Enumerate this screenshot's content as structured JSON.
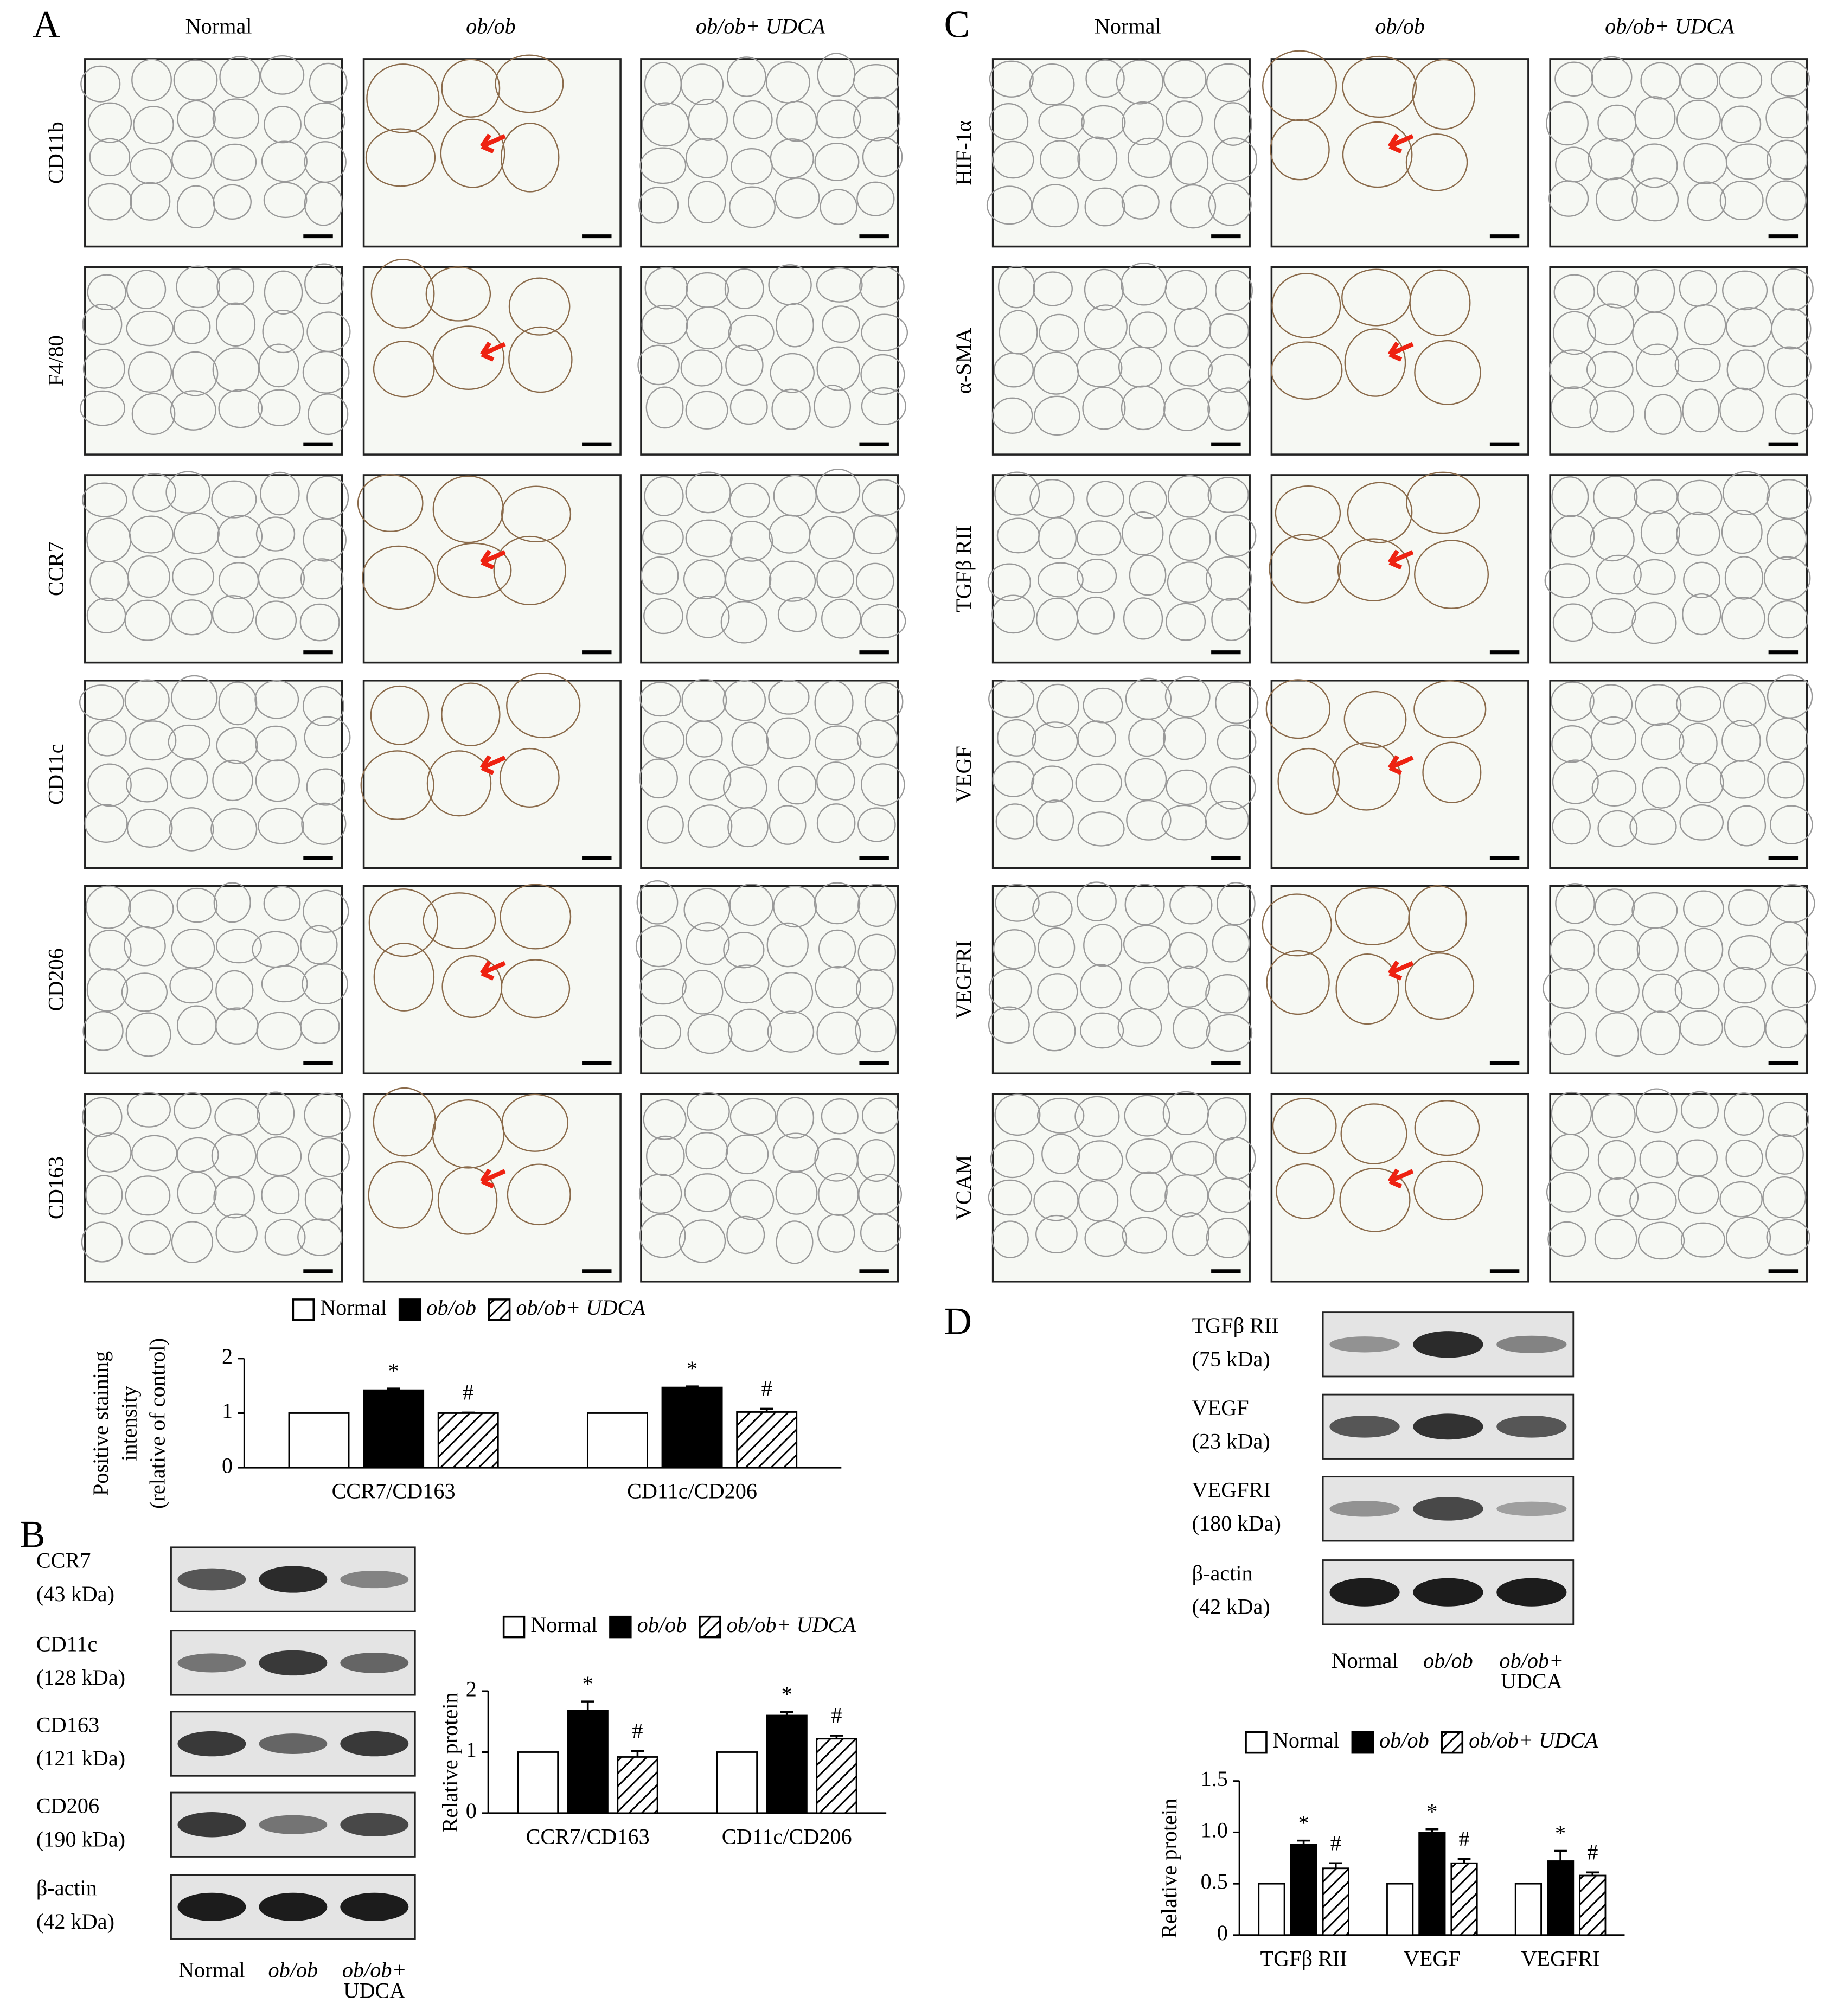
{
  "panel_labels": [
    "A",
    "B",
    "C",
    "D"
  ],
  "micrographs_A": {
    "columns": [
      "Normal",
      "ob/ob",
      "ob/ob+ UDCA"
    ],
    "rows": [
      "CD11b",
      "F4/80",
      "CCR7",
      "CD11c",
      "CD206",
      "CD163"
    ]
  },
  "micrographs_C": {
    "columns": [
      "Normal",
      "ob/ob",
      "ob/ob+ UDCA"
    ],
    "rows": [
      "HIF-1α",
      "α-SMA",
      "TGFβ RII",
      "VEGF",
      "VEGFRI",
      "VCAM"
    ]
  },
  "blot_B": {
    "bands": [
      {
        "label": "CCR7",
        "size": "(43 kDa)"
      },
      {
        "label": "CD11c",
        "size": "(128 kDa)"
      },
      {
        "label": "CD163",
        "size": "(121 kDa)"
      },
      {
        "label": "CD206",
        "size": "(190 kDa)"
      },
      {
        "label": "β-actin",
        "size": "(42 kDa)"
      }
    ],
    "lanes": [
      [
        "Normal"
      ],
      [
        "ob/ob"
      ],
      [
        "ob/ob+",
        "UDCA"
      ]
    ]
  },
  "blot_D": {
    "bands": [
      {
        "label": "TGFβ RII",
        "size": "(75 kDa)"
      },
      {
        "label": "VEGF",
        "size": "(23 kDa)"
      },
      {
        "label": "VEGFRI",
        "size": "(180 kDa)"
      },
      {
        "label": "β-actin",
        "size": "(42 kDa)"
      }
    ],
    "lanes": [
      [
        "Normal"
      ],
      [
        "ob/ob"
      ],
      [
        "ob/ob+",
        "UDCA"
      ]
    ]
  },
  "chart_data": [
    {
      "type": "bar",
      "ylabel": [
        "Positive staining",
        "intensity",
        "(relative of control)"
      ],
      "categories": [
        "CCR7/CD163",
        "CD11c/CD206"
      ],
      "ylim": [
        0,
        2
      ],
      "yticks": [
        0,
        1,
        2
      ],
      "series": [
        {
          "name": "Normal",
          "color": "#ffffff",
          "values": [
            1,
            1
          ]
        },
        {
          "name": "ob/ob",
          "color": "#000000",
          "values": [
            1.42,
            1.47
          ],
          "errors": [
            0.03,
            0.02
          ],
          "annotations": [
            "*",
            "*"
          ]
        },
        {
          "name": "ob/ob+ UDCA",
          "color": "hatch",
          "values": [
            1.0,
            1.02
          ],
          "errors": [
            0.01,
            0.06
          ],
          "annotations": [
            "#",
            "#"
          ]
        }
      ]
    },
    {
      "type": "bar",
      "ylabel": [
        "Relative protein"
      ],
      "categories": [
        "CCR7/CD163",
        "CD11c/CD206"
      ],
      "ylim": [
        0,
        2
      ],
      "yticks": [
        0,
        1,
        2
      ],
      "series": [
        {
          "name": "Normal",
          "color": "#ffffff",
          "values": [
            1,
            1
          ]
        },
        {
          "name": "ob/ob",
          "color": "#000000",
          "values": [
            1.68,
            1.6
          ],
          "errors": [
            0.15,
            0.06
          ],
          "annotations": [
            "*",
            "*"
          ]
        },
        {
          "name": "ob/ob+ UDCA",
          "color": "hatch",
          "values": [
            0.92,
            1.22
          ],
          "errors": [
            0.1,
            0.05
          ],
          "annotations": [
            "#",
            "#"
          ]
        }
      ]
    },
    {
      "type": "bar",
      "ylabel": [
        "Relative protein"
      ],
      "categories": [
        "TGFβ RII",
        "VEGF",
        "VEGFRI"
      ],
      "ylim": [
        0,
        1.5
      ],
      "yticks": [
        0,
        0.5,
        {
          "value": 1,
          "label": "1.0"
        },
        1.5
      ],
      "series": [
        {
          "name": "Normal",
          "color": "#ffffff",
          "values": [
            0.5,
            0.5,
            0.5
          ]
        },
        {
          "name": "ob/ob",
          "color": "#000000",
          "values": [
            0.88,
            1.0,
            0.72
          ],
          "errors": [
            0.04,
            0.03,
            0.1
          ],
          "annotations": [
            "*",
            "*",
            "*"
          ]
        },
        {
          "name": "ob/ob+ UDCA",
          "color": "hatch",
          "values": [
            0.65,
            0.7,
            0.58
          ],
          "errors": [
            0.05,
            0.04,
            0.03
          ],
          "annotations": [
            "#",
            "#",
            "#"
          ]
        }
      ]
    }
  ]
}
